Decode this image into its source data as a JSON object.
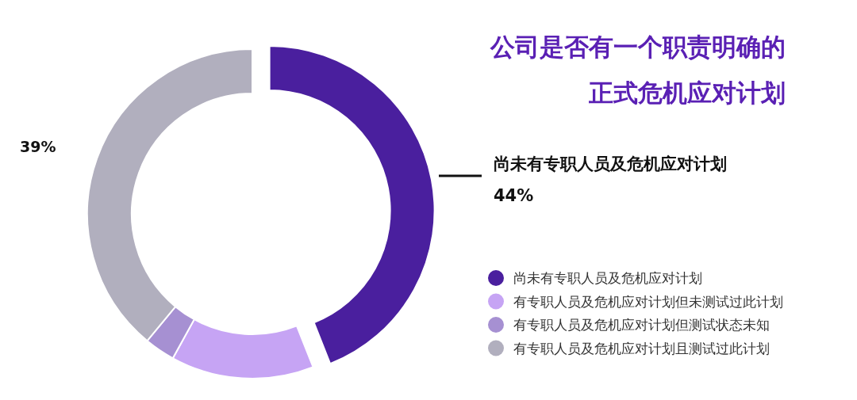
{
  "chart_data": {
    "type": "donut",
    "title": "公司是否有一个职责明确的正式危机应对计划",
    "categories": [
      "尚未有专职人员及危机应对计划",
      "有专职人员及危机应对计划但未测试过此计划",
      "有专职人员及危机应对计划但测试状态未知",
      "有专职人员及危机应对计划且测试过此计划"
    ],
    "values": [
      44,
      14,
      3,
      39
    ],
    "colors": [
      "#4a1f9e",
      "#c6a4f4",
      "#a690d2",
      "#b1afbe"
    ],
    "value_labels": [
      "44%",
      null,
      null,
      "39%"
    ],
    "annotations": [
      "尚未有专职人员及危机应对计划"
    ],
    "legend": "right"
  }
}
